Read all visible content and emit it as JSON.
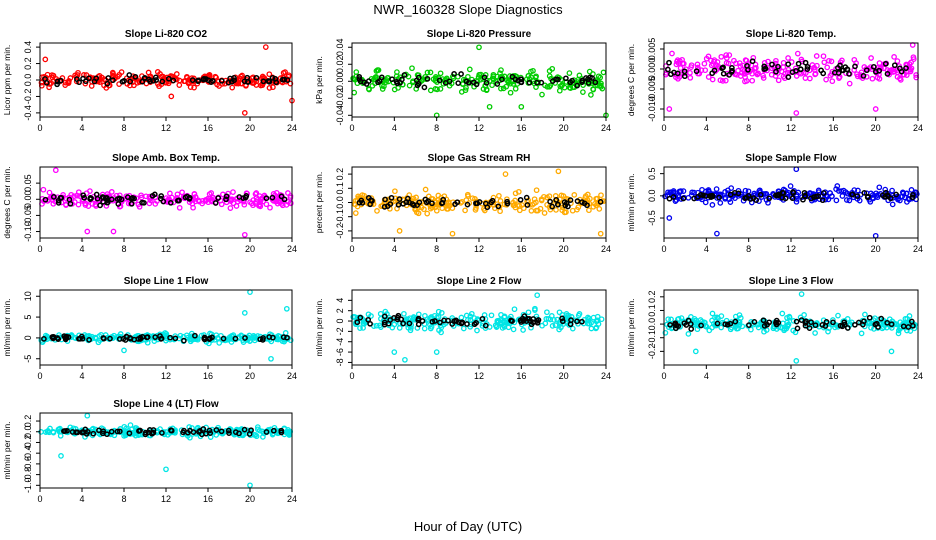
{
  "figure": {
    "title": "NWR_160328  Slope Diagnostics",
    "xlabel": "Hour of Day (UTC)"
  },
  "chart_data": [
    {
      "type": "scatter",
      "title": "Slope Li-820 CO2",
      "ylabel": "Licor ppm per min.",
      "color": "#ff0000",
      "xlim": [
        0,
        24
      ],
      "ylim": [
        -0.45,
        0.45
      ],
      "yticks": [
        -0.4,
        -0.2,
        0.0,
        0.2,
        0.4
      ],
      "ytick_labels": [
        "-0.4",
        "-0.2",
        "0.0",
        "0.2",
        "0.4"
      ],
      "xticks": [
        0,
        4,
        8,
        12,
        16,
        20,
        24
      ],
      "spread": 0.08,
      "outliers": [
        [
          21.5,
          0.4
        ],
        [
          19.5,
          -0.4
        ],
        [
          24,
          -0.25
        ],
        [
          0.5,
          0.25
        ],
        [
          12.5,
          -0.2
        ]
      ]
    },
    {
      "type": "scatter",
      "title": "Slope Li-820 Pressure",
      "ylabel": "kPa per min.",
      "color": "#00cc00",
      "xlim": [
        0,
        24
      ],
      "ylim": [
        -0.042,
        0.045
      ],
      "yticks": [
        -0.04,
        -0.02,
        0.0,
        0.02,
        0.04
      ],
      "ytick_labels": [
        "-0.04",
        "-0.02",
        "0.00",
        "0.02",
        "0.04"
      ],
      "xticks": [
        0,
        4,
        8,
        12,
        16,
        20,
        24
      ],
      "spread": 0.012,
      "outliers": [
        [
          8,
          -0.04
        ],
        [
          24,
          -0.04
        ],
        [
          16,
          -0.03
        ],
        [
          12,
          0.04
        ],
        [
          13,
          -0.03
        ]
      ]
    },
    {
      "type": "scatter",
      "title": "Slope Li-820 Temp.",
      "ylabel": "degrees C per min.",
      "color": "#ff00ff",
      "xlim": [
        0,
        24
      ],
      "ylim": [
        -0.012,
        0.0065
      ],
      "yticks": [
        -0.01,
        -0.005,
        0.0,
        0.005
      ],
      "ytick_labels": [
        "-0.010",
        "-0.005",
        "0.000",
        "0.005"
      ],
      "xticks": [
        0,
        4,
        8,
        12,
        16,
        20,
        24
      ],
      "spread": 0.003,
      "outliers": [
        [
          0.5,
          -0.01
        ],
        [
          12.5,
          -0.011
        ],
        [
          20,
          -0.01
        ],
        [
          23.5,
          0.006
        ]
      ]
    },
    {
      "type": "scatter",
      "title": "Slope Amb. Box Temp.",
      "ylabel": "degrees C per min.",
      "color": "#ff00ff",
      "xlim": [
        0,
        24
      ],
      "ylim": [
        -0.12,
        0.1
      ],
      "yticks": [
        -0.1,
        -0.05,
        0.0,
        0.05
      ],
      "ytick_labels": [
        "-0.10",
        "-0.05",
        "0.00",
        "0.05"
      ],
      "xticks": [
        0,
        4,
        8,
        12,
        16,
        20,
        24
      ],
      "spread": 0.025,
      "outliers": [
        [
          1.5,
          0.09
        ],
        [
          19.5,
          -0.11
        ],
        [
          4.5,
          -0.1
        ],
        [
          7,
          -0.1
        ]
      ]
    },
    {
      "type": "scatter",
      "title": "Slope Gas Stream RH",
      "ylabel": "percent per min.",
      "color": "#ffaa00",
      "xlim": [
        0,
        24
      ],
      "ylim": [
        -0.25,
        0.25
      ],
      "yticks": [
        -0.2,
        -0.1,
        0.0,
        0.1,
        0.2
      ],
      "ytick_labels": [
        "-0.2",
        "-0.1",
        "0.0",
        "0.1",
        "0.2"
      ],
      "xticks": [
        0,
        4,
        8,
        12,
        16,
        20,
        24
      ],
      "spread": 0.06,
      "outliers": [
        [
          19.5,
          0.22
        ],
        [
          9.5,
          -0.22
        ],
        [
          14.5,
          0.2
        ],
        [
          4.5,
          -0.2
        ],
        [
          23.5,
          -0.22
        ]
      ]
    },
    {
      "type": "scatter",
      "title": "Slope Sample Flow",
      "ylabel": "ml/min per min.",
      "color": "#0000ee",
      "xlim": [
        0,
        24
      ],
      "ylim": [
        -0.95,
        0.65
      ],
      "yticks": [
        -0.5,
        0.0,
        0.5
      ],
      "ytick_labels": [
        "-0.5",
        "0.0",
        "0.5"
      ],
      "xticks": [
        0,
        4,
        8,
        12,
        16,
        20,
        24
      ],
      "spread": 0.15,
      "outliers": [
        [
          5,
          -0.85
        ],
        [
          20,
          -0.9
        ],
        [
          12.5,
          0.6
        ],
        [
          0.5,
          -0.5
        ]
      ]
    },
    {
      "type": "scatter",
      "title": "Slope Line 1 Flow",
      "ylabel": "ml/min per min.",
      "color": "#00e5e5",
      "xlim": [
        0,
        24
      ],
      "ylim": [
        -6.5,
        11.5
      ],
      "yticks": [
        -5,
        0,
        5,
        10
      ],
      "ytick_labels": [
        "-5",
        "0",
        "5",
        "10"
      ],
      "xticks": [
        0,
        4,
        8,
        12,
        16,
        20,
        24
      ],
      "spread": 1.0,
      "outliers": [
        [
          20,
          11
        ],
        [
          22,
          -5
        ],
        [
          23.5,
          7
        ],
        [
          19.5,
          6
        ],
        [
          8,
          -3
        ]
      ]
    },
    {
      "type": "scatter",
      "title": "Slope Line 2 Flow",
      "ylabel": "ml/min per min.",
      "color": "#00e5e5",
      "xlim": [
        0,
        24
      ],
      "ylim": [
        -8.5,
        6
      ],
      "yticks": [
        -8,
        -6,
        -4,
        -2,
        0,
        2,
        4
      ],
      "ytick_labels": [
        "-8",
        "-6",
        "-4",
        "-2",
        "0",
        "2",
        "4"
      ],
      "xticks": [
        0,
        4,
        8,
        12,
        16,
        20,
        24
      ],
      "spread": 1.6,
      "outliers": [
        [
          5,
          -7.5
        ],
        [
          17.5,
          5
        ],
        [
          4,
          -6
        ],
        [
          8,
          -6
        ]
      ]
    },
    {
      "type": "scatter",
      "title": "Slope Line 3 Flow",
      "ylabel": "ml/min per min.",
      "color": "#00e5e5",
      "xlim": [
        0,
        24
      ],
      "ylim": [
        -0.3,
        0.25
      ],
      "yticks": [
        -0.2,
        -0.1,
        0.0,
        0.1,
        0.2
      ],
      "ytick_labels": [
        "-0.2",
        "-0.1",
        "0.0",
        "0.1",
        "0.2"
      ],
      "xticks": [
        0,
        4,
        8,
        12,
        16,
        20,
        24
      ],
      "spread": 0.06,
      "outliers": [
        [
          12.5,
          -0.27
        ],
        [
          13,
          0.22
        ],
        [
          3,
          -0.2
        ],
        [
          21.5,
          -0.2
        ]
      ]
    },
    {
      "type": "scatter",
      "title": "Slope Line 4 (LT) Flow",
      "ylabel": "ml/min per min.",
      "color": "#00e5e5",
      "xlim": [
        0,
        24
      ],
      "ylim": [
        -1.05,
        0.35
      ],
      "yticks": [
        -1.0,
        -0.8,
        -0.6,
        -0.4,
        -0.2,
        0.0,
        0.2
      ],
      "ytick_labels": [
        "-1.0",
        "-0.8",
        "-0.6",
        "-0.4",
        "-0.2",
        "0.0",
        "0.2"
      ],
      "xticks": [
        0,
        4,
        8,
        12,
        16,
        20,
        24
      ],
      "spread": 0.08,
      "outliers": [
        [
          20,
          -1.0
        ],
        [
          12,
          -0.7
        ],
        [
          2,
          -0.45
        ],
        [
          4.5,
          0.3
        ]
      ]
    }
  ]
}
